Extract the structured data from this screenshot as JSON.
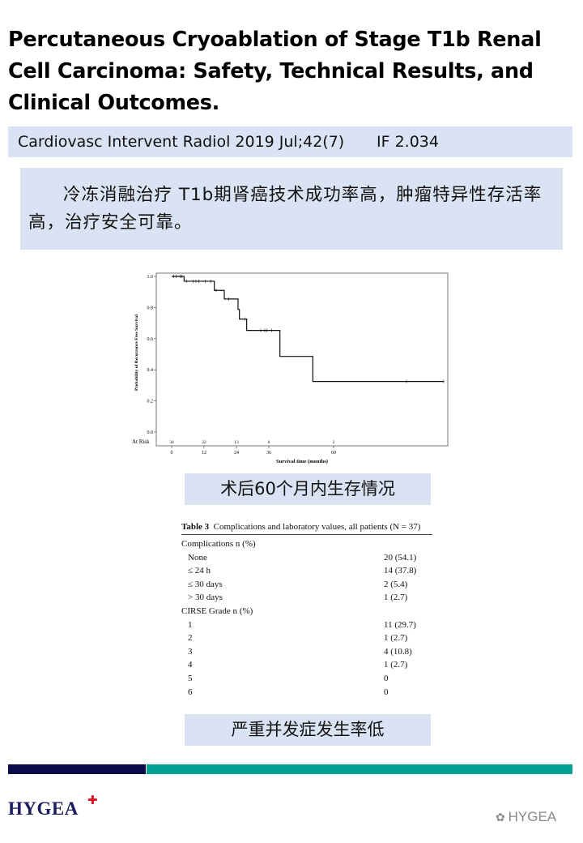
{
  "title": "Percutaneous Cryoablation of Stage T1b Renal Cell Carcinoma: Safety, Technical Results, and Clinical Outcomes.",
  "journal": {
    "citation": "Cardiovasc Intervent Radiol 2019 Jul;42(7)",
    "impact_factor": "IF 2.034"
  },
  "summary": "冷冻消融治疗 T1b期肾癌技术成功率高，肿瘤特异性存活率高，治疗安全可靠。",
  "chart_data": {
    "type": "line",
    "ylabel": "Probability of Recurrence Free Survival",
    "xlabel": "Survival time (months)",
    "xticks": [
      0,
      12,
      24,
      36,
      60
    ],
    "yticks": [
      "0.0",
      "0.2",
      "0.4",
      "0.6",
      "0.8",
      "1.0"
    ],
    "xlim": [
      0,
      101
    ],
    "ylim": [
      0,
      1.0
    ],
    "at_risk_label": "At Risk",
    "at_risk": [
      {
        "x": 0,
        "n": "34"
      },
      {
        "x": 12,
        "n": "22"
      },
      {
        "x": 24,
        "n": "13"
      },
      {
        "x": 36,
        "n": "6"
      },
      {
        "x": 60,
        "n": "2"
      }
    ],
    "steps": [
      [
        0,
        1.0
      ],
      [
        4.6,
        0.969
      ],
      [
        15.8,
        0.91
      ],
      [
        19.5,
        0.855
      ],
      [
        24.6,
        0.788
      ],
      [
        25.1,
        0.726
      ],
      [
        27.8,
        0.653
      ],
      [
        40.1,
        0.486
      ],
      [
        52.3,
        0.325
      ],
      [
        100.8,
        0.325
      ]
    ],
    "censored": [
      [
        0.8,
        1.0
      ],
      [
        1.6,
        1.0
      ],
      [
        3.2,
        1.0
      ],
      [
        3.8,
        1.0
      ],
      [
        5.5,
        0.969
      ],
      [
        8,
        0.969
      ],
      [
        9,
        0.969
      ],
      [
        10,
        0.969
      ],
      [
        12.5,
        0.969
      ],
      [
        14.5,
        0.969
      ],
      [
        16.5,
        0.91
      ],
      [
        21.2,
        0.855
      ],
      [
        27.2,
        0.726
      ],
      [
        33,
        0.653
      ],
      [
        34.5,
        0.653
      ],
      [
        35.3,
        0.653
      ],
      [
        37,
        0.653
      ],
      [
        87,
        0.325
      ],
      [
        100.8,
        0.325
      ]
    ],
    "grid": false
  },
  "caption1": "术后60个月内生存情况",
  "table": {
    "title_bold": "Table 3",
    "title_rest": "Complications and laboratory values, all patients (N = 37)",
    "rows": [
      {
        "label": "Complications n (%)",
        "value": "",
        "indent": false
      },
      {
        "label": "None",
        "value": "20 (54.1)",
        "indent": true
      },
      {
        "label": "≤ 24 h",
        "value": "14 (37.8)",
        "indent": true
      },
      {
        "label": "≤ 30 days",
        "value": "2 (5.4)",
        "indent": true
      },
      {
        "label": "> 30 days",
        "value": "1 (2.7)",
        "indent": true
      },
      {
        "label": "CIRSE Grade n (%)",
        "value": "",
        "indent": false
      },
      {
        "label": "1",
        "value": "11 (29.7)",
        "indent": true
      },
      {
        "label": "2",
        "value": "1 (2.7)",
        "indent": true
      },
      {
        "label": "3",
        "value": "4 (10.8)",
        "indent": true
      },
      {
        "label": "4",
        "value": "1 (2.7)",
        "indent": true
      },
      {
        "label": "5",
        "value": "0",
        "indent": true
      },
      {
        "label": "6",
        "value": "0",
        "indent": true
      }
    ]
  },
  "caption2": "严重并发症发生率低",
  "footer": {
    "logo": "HYGEA",
    "watermark": "HYGEA",
    "colors": {
      "navy": "#0b0a4a",
      "teal": "#00a095",
      "cross": "#e01020"
    }
  }
}
